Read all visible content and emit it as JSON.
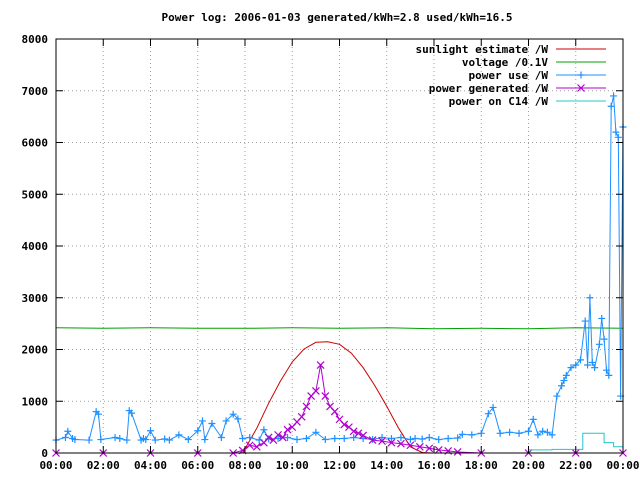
{
  "chart_data": {
    "type": "line",
    "title": "Power log: 2006-01-03 generated/kWh=2.8 used/kWh=16.5",
    "xlabel": "",
    "ylabel": "",
    "x_unit": "hours",
    "xlim": [
      0,
      24
    ],
    "ylim": [
      0,
      8000
    ],
    "grid": true,
    "legend_position": "top-right",
    "x_ticks": [
      {
        "value": 0,
        "label": "00:00"
      },
      {
        "value": 2,
        "label": "02:00"
      },
      {
        "value": 4,
        "label": "04:00"
      },
      {
        "value": 6,
        "label": "06:00"
      },
      {
        "value": 8,
        "label": "08:00"
      },
      {
        "value": 10,
        "label": "10:00"
      },
      {
        "value": 12,
        "label": "12:00"
      },
      {
        "value": 14,
        "label": "14:00"
      },
      {
        "value": 16,
        "label": "16:00"
      },
      {
        "value": 18,
        "label": "18:00"
      },
      {
        "value": 20,
        "label": "20:00"
      },
      {
        "value": 22,
        "label": "22:00"
      },
      {
        "value": 24,
        "label": "00:00"
      }
    ],
    "y_ticks": [
      {
        "value": 0,
        "label": "0"
      },
      {
        "value": 1000,
        "label": "1000"
      },
      {
        "value": 2000,
        "label": "2000"
      },
      {
        "value": 3000,
        "label": "3000"
      },
      {
        "value": 4000,
        "label": "4000"
      },
      {
        "value": 5000,
        "label": "5000"
      },
      {
        "value": 6000,
        "label": "6000"
      },
      {
        "value": 7000,
        "label": "7000"
      },
      {
        "value": 8000,
        "label": "8000"
      }
    ],
    "series": [
      {
        "name": "sunlight estimate /W",
        "color": "#cc0000",
        "marker": "none",
        "x": [
          7.9,
          8.5,
          9.0,
          9.5,
          10.0,
          10.5,
          11.0,
          11.5,
          12.0,
          12.5,
          13.0,
          13.5,
          14.0,
          14.5,
          15.0,
          15.5,
          15.9
        ],
        "y": [
          0,
          480,
          960,
          1390,
          1760,
          2010,
          2140,
          2150,
          2100,
          1930,
          1650,
          1300,
          900,
          480,
          120,
          10,
          0
        ]
      },
      {
        "name": "voltage /0.1V",
        "color": "#00a000",
        "marker": "none",
        "x": [
          0,
          2,
          4,
          6,
          8,
          10,
          12,
          14,
          16,
          18,
          20,
          22,
          24
        ],
        "y": [
          2420,
          2410,
          2420,
          2410,
          2410,
          2420,
          2410,
          2420,
          2400,
          2410,
          2400,
          2420,
          2410
        ]
      },
      {
        "name": "power use /W",
        "color": "#1e90ff",
        "marker": "plus",
        "x": [
          0,
          0.4,
          0.5,
          0.7,
          0.8,
          1.4,
          1.7,
          1.8,
          1.9,
          2.5,
          2.7,
          3.0,
          3.1,
          3.2,
          3.6,
          3.7,
          3.8,
          4.0,
          4.2,
          4.6,
          4.8,
          5.2,
          5.6,
          6.0,
          6.2,
          6.3,
          6.6,
          7.0,
          7.2,
          7.5,
          7.7,
          7.9,
          8.2,
          8.6,
          8.8,
          9.0,
          9.4,
          9.8,
          10.2,
          10.6,
          11.0,
          11.4,
          11.8,
          12.2,
          12.6,
          13.0,
          13.4,
          13.8,
          14.2,
          14.6,
          15.0,
          15.2,
          15.5,
          15.8,
          16.2,
          16.6,
          17.0,
          17.2,
          17.6,
          18.0,
          18.3,
          18.5,
          18.8,
          19.2,
          19.6,
          20.0,
          20.2,
          20.4,
          20.6,
          20.8,
          21.0,
          21.2,
          21.4,
          21.5,
          21.6,
          21.8,
          22.0,
          22.2,
          22.4,
          22.5,
          22.6,
          22.7,
          22.8,
          23.0,
          23.1,
          23.2,
          23.3,
          23.4,
          23.5,
          23.6,
          23.7,
          23.8,
          23.9,
          24.0
        ],
        "y": [
          250,
          300,
          420,
          280,
          260,
          250,
          800,
          750,
          260,
          300,
          280,
          250,
          820,
          770,
          250,
          280,
          260,
          430,
          250,
          270,
          250,
          350,
          260,
          430,
          620,
          260,
          570,
          300,
          620,
          750,
          660,
          280,
          300,
          250,
          450,
          270,
          280,
          300,
          260,
          280,
          400,
          260,
          280,
          280,
          300,
          280,
          260,
          300,
          280,
          300,
          260,
          280,
          270,
          300,
          260,
          280,
          290,
          360,
          350,
          380,
          760,
          880,
          380,
          400,
          380,
          420,
          650,
          350,
          420,
          400,
          350,
          1100,
          1300,
          1400,
          1500,
          1650,
          1700,
          1800,
          2550,
          1700,
          3000,
          1750,
          1650,
          2100,
          2600,
          2200,
          1600,
          1500,
          6700,
          6900,
          6200,
          6100,
          1100,
          6300
        ]
      },
      {
        "name": "power generated /W",
        "color": "#b000d0",
        "marker": "cross",
        "x": [
          0,
          2,
          4,
          6,
          7.5,
          7.9,
          8.2,
          8.5,
          8.8,
          9.0,
          9.2,
          9.4,
          9.6,
          9.8,
          10.0,
          10.2,
          10.4,
          10.6,
          10.8,
          11.0,
          11.2,
          11.4,
          11.6,
          11.8,
          12.0,
          12.2,
          12.4,
          12.6,
          12.8,
          13.0,
          13.4,
          13.8,
          14.2,
          14.6,
          15.0,
          15.4,
          15.8,
          16.2,
          16.6,
          17.0,
          18,
          20,
          22,
          24
        ],
        "y": [
          0,
          0,
          0,
          0,
          0,
          50,
          150,
          120,
          200,
          300,
          250,
          350,
          300,
          450,
          500,
          600,
          700,
          900,
          1100,
          1200,
          1700,
          1100,
          900,
          800,
          650,
          550,
          500,
          420,
          380,
          340,
          250,
          230,
          200,
          180,
          150,
          120,
          90,
          60,
          40,
          20,
          0,
          0,
          0,
          0
        ]
      },
      {
        "name": "power on C14 /W",
        "color": "#20c8c8",
        "marker": "none",
        "x": [
          0,
          20.0,
          20.0,
          21.0,
          21.0,
          22.3,
          22.3,
          23.2,
          23.2,
          23.6,
          23.6,
          24.0
        ],
        "y": [
          0,
          0,
          60,
          60,
          70,
          70,
          380,
          380,
          200,
          200,
          120,
          120
        ]
      }
    ]
  }
}
